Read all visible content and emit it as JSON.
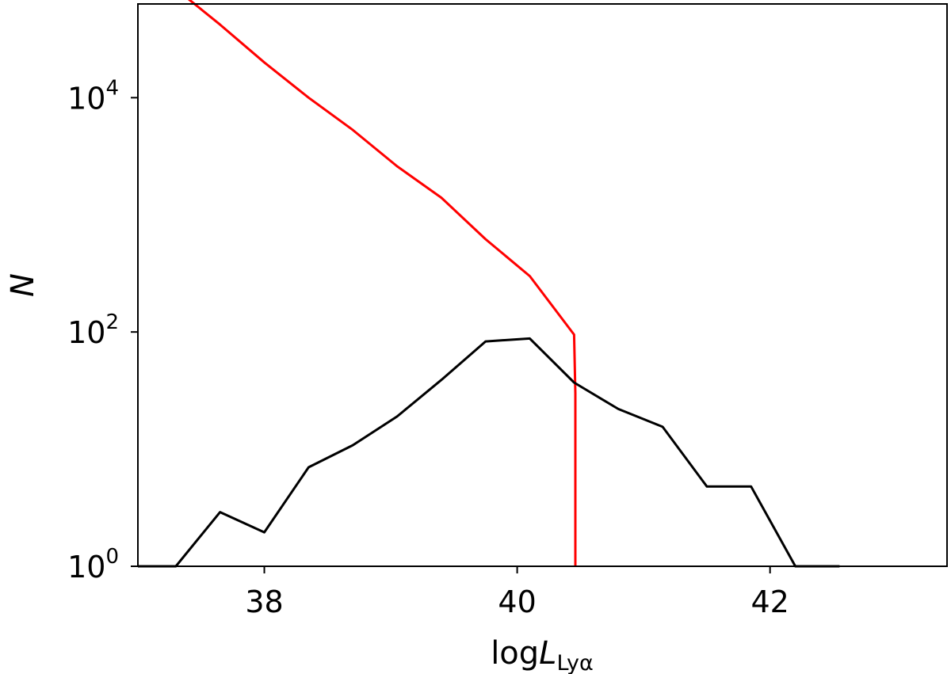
{
  "chart_data": {
    "type": "line",
    "title": "",
    "xlabel": {
      "prefix": "log",
      "var": "L",
      "subscript": "Lyα"
    },
    "ylabel": "N",
    "xlim": [
      37.0,
      43.4
    ],
    "ylim_log10": [
      0,
      4.8
    ],
    "yscale": "log",
    "grid": false,
    "x_ticks": [
      {
        "value": 38,
        "label": "38"
      },
      {
        "value": 40,
        "label": "40"
      },
      {
        "value": 42,
        "label": "42"
      }
    ],
    "y_ticks": [
      {
        "exp": 0,
        "base": "10",
        "sup": "0"
      },
      {
        "exp": 2,
        "base": "10",
        "sup": "2"
      },
      {
        "exp": 4,
        "base": "10",
        "sup": "4"
      }
    ],
    "series": [
      {
        "color": "#ff0000",
        "x": [
          37.0,
          37.3,
          37.65,
          38.0,
          38.35,
          38.7,
          39.05,
          39.4,
          39.75,
          40.1,
          40.45,
          40.46,
          40.46
        ],
        "y": [
          140000,
          85000,
          42000,
          20000,
          10000,
          5300,
          2600,
          1400,
          620,
          300,
          95,
          30,
          1
        ]
      },
      {
        "color": "#000000",
        "x": [
          37.0,
          37.3,
          37.65,
          38.0,
          38.35,
          38.7,
          39.05,
          39.4,
          39.75,
          40.1,
          40.45,
          40.8,
          41.15,
          41.5,
          41.85,
          42.2,
          42.55
        ],
        "y": [
          1,
          1,
          2.9,
          1.95,
          7.0,
          10.8,
          19.0,
          39.0,
          83.0,
          88.0,
          37.0,
          22.0,
          15.5,
          4.8,
          4.8,
          1,
          1
        ]
      }
    ]
  }
}
